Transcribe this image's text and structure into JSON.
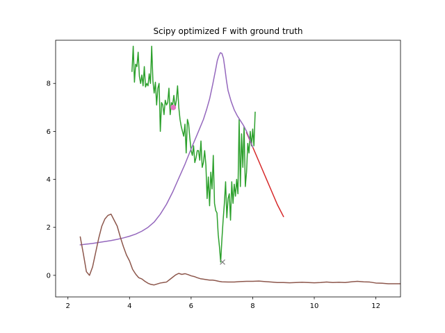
{
  "chart_data": {
    "type": "line",
    "title": "Scipy optimized F with ground truth",
    "xlabel": "",
    "ylabel": "",
    "xlim": [
      1.6,
      12.8
    ],
    "ylim": [
      -0.9,
      9.8
    ],
    "xticks": [
      2,
      4,
      6,
      8,
      10,
      12
    ],
    "yticks": [
      0,
      2,
      4,
      6,
      8
    ],
    "grid": false,
    "colors": {
      "green": "#2ca02c",
      "red": "#d62728",
      "purple": "#9467bd",
      "brown": "#8c564b",
      "pink": "#e377c2",
      "gray": "#7f7f7f"
    },
    "series": [
      {
        "kind": "line",
        "color": "#2ca02c",
        "x": [
          4.08,
          4.12,
          4.16,
          4.2,
          4.24,
          4.28,
          4.32,
          4.36,
          4.4,
          4.44,
          4.48,
          4.52,
          4.56,
          4.6,
          4.64,
          4.68,
          4.72,
          4.76,
          4.8,
          4.84,
          4.88,
          4.92,
          4.96,
          5.0,
          5.04,
          5.08,
          5.12,
          5.16,
          5.2,
          5.24,
          5.28,
          5.32,
          5.36,
          5.4,
          5.44,
          5.48,
          5.52,
          5.56,
          5.6,
          5.64,
          5.68,
          5.72,
          5.76,
          5.8,
          5.84,
          5.88,
          5.92,
          5.96,
          6.0,
          6.04,
          6.08,
          6.12,
          6.16,
          6.2,
          6.24,
          6.28,
          6.32,
          6.36,
          6.4,
          6.44,
          6.48,
          6.52,
          6.56,
          6.6,
          6.64,
          6.68,
          6.72,
          6.76,
          6.8,
          6.84,
          6.88,
          6.92,
          6.96,
          7.0,
          7.04,
          7.08,
          7.12,
          7.16,
          7.2,
          7.24,
          7.28,
          7.32,
          7.36,
          7.4,
          7.44,
          7.48,
          7.52,
          7.56,
          7.6,
          7.64,
          7.68,
          7.72,
          7.76,
          7.8,
          7.84,
          7.88,
          7.92,
          7.96,
          8.0,
          8.04,
          8.08
        ],
        "y": [
          8.5,
          9.55,
          8.05,
          8.8,
          8.7,
          9.3,
          8.3,
          8.0,
          8.35,
          7.9,
          8.7,
          7.85,
          8.0,
          7.9,
          8.4,
          8.0,
          9.55,
          8.1,
          7.6,
          8.05,
          7.1,
          7.8,
          8.0,
          6.0,
          7.2,
          7.1,
          6.7,
          7.3,
          7.1,
          7.2,
          7.8,
          6.7,
          7.2,
          7.1,
          7.5,
          7.0,
          7.3,
          7.9,
          7.0,
          6.5,
          6.2,
          6.0,
          5.8,
          6.3,
          5.1,
          6.5,
          6.3,
          5.7,
          5.2,
          5.0,
          5.4,
          4.7,
          4.9,
          5.2,
          5.2,
          4.8,
          5.6,
          4.5,
          4.7,
          5.2,
          4.6,
          3.2,
          4.1,
          2.9,
          4.3,
          3.6,
          5.0,
          3.0,
          2.7,
          2.6,
          1.7,
          1.2,
          0.55,
          1.5,
          2.3,
          3.0,
          3.9,
          2.4,
          3.2,
          3.4,
          2.3,
          3.9,
          3.0,
          3.8,
          3.3,
          4.0,
          3.4,
          6.5,
          3.7,
          5.9,
          4.5,
          6.2,
          3.7,
          4.3,
          5.5,
          5.1,
          6.0,
          5.4,
          6.1,
          5.4,
          6.8
        ]
      },
      {
        "kind": "line",
        "color": "#d62728",
        "x": [
          7.8,
          8.0,
          8.2,
          8.4,
          8.6,
          8.8,
          9.0
        ],
        "y": [
          5.95,
          5.35,
          4.75,
          4.15,
          3.55,
          2.95,
          2.45
        ]
      },
      {
        "kind": "line",
        "color": "#9467bd",
        "x": [
          2.4,
          2.6,
          2.8,
          3.0,
          3.2,
          3.4,
          3.6,
          3.8,
          4.0,
          4.2,
          4.4,
          4.6,
          4.8,
          5.0,
          5.2,
          5.4,
          5.6,
          5.8,
          6.0,
          6.2,
          6.4,
          6.5,
          6.6,
          6.7,
          6.8,
          6.85,
          6.9,
          6.95,
          7.0,
          7.05,
          7.1,
          7.15,
          7.2,
          7.3,
          7.4,
          7.5,
          7.6,
          7.7,
          7.8,
          8.0
        ],
        "y": [
          1.27,
          1.3,
          1.33,
          1.37,
          1.41,
          1.45,
          1.5,
          1.56,
          1.63,
          1.72,
          1.84,
          2.0,
          2.22,
          2.55,
          2.96,
          3.47,
          4.05,
          4.63,
          5.27,
          5.88,
          6.5,
          6.9,
          7.35,
          7.95,
          8.6,
          8.95,
          9.15,
          9.28,
          9.25,
          9.05,
          8.6,
          8.1,
          7.7,
          7.25,
          6.9,
          6.65,
          6.45,
          6.25,
          6.0,
          5.35
        ]
      },
      {
        "kind": "line",
        "color": "#8c564b",
        "x": [
          2.4,
          2.5,
          2.6,
          2.7,
          2.8,
          2.9,
          3.0,
          3.1,
          3.2,
          3.3,
          3.4,
          3.5,
          3.6,
          3.7,
          3.8,
          3.9,
          4.0,
          4.1,
          4.2,
          4.3,
          4.4,
          4.5,
          4.6,
          4.7,
          4.8,
          4.9,
          5.0,
          5.1,
          5.2,
          5.3,
          5.4,
          5.5,
          5.6,
          5.7,
          5.8,
          5.9,
          6.0,
          6.1,
          6.2,
          6.3,
          6.4,
          6.5,
          6.6,
          6.7,
          6.8,
          6.9,
          7.0,
          7.2,
          7.4,
          7.6,
          7.8,
          8.0,
          8.2,
          8.4,
          8.6,
          8.8,
          9.0,
          9.2,
          9.4,
          9.6,
          9.8,
          10.0,
          10.2,
          10.4,
          10.6,
          10.8,
          11.0,
          11.2,
          11.4,
          11.6,
          11.8,
          12.0,
          12.2,
          12.4,
          12.6,
          12.8
        ],
        "y": [
          1.6,
          0.9,
          0.15,
          0.0,
          0.35,
          0.95,
          1.55,
          2.05,
          2.35,
          2.5,
          2.55,
          2.3,
          2.05,
          1.6,
          1.2,
          0.85,
          0.6,
          0.25,
          0.05,
          -0.1,
          -0.15,
          -0.25,
          -0.33,
          -0.38,
          -0.4,
          -0.36,
          -0.32,
          -0.3,
          -0.28,
          -0.18,
          -0.08,
          0.02,
          0.08,
          0.04,
          0.07,
          0.03,
          -0.02,
          -0.05,
          -0.1,
          -0.14,
          -0.16,
          -0.18,
          -0.2,
          -0.2,
          -0.22,
          -0.25,
          -0.27,
          -0.28,
          -0.28,
          -0.26,
          -0.25,
          -0.25,
          -0.24,
          -0.26,
          -0.28,
          -0.3,
          -0.3,
          -0.31,
          -0.3,
          -0.29,
          -0.3,
          -0.31,
          -0.3,
          -0.28,
          -0.3,
          -0.29,
          -0.3,
          -0.27,
          -0.25,
          -0.27,
          -0.28,
          -0.32,
          -0.33,
          -0.35,
          -0.35,
          -0.35
        ]
      },
      {
        "kind": "point",
        "color": "#e377c2",
        "marker": "o",
        "x": 5.42,
        "y": 7.0
      },
      {
        "kind": "point",
        "color": "#7f7f7f",
        "marker": "x",
        "x": 7.02,
        "y": 0.55
      }
    ]
  }
}
